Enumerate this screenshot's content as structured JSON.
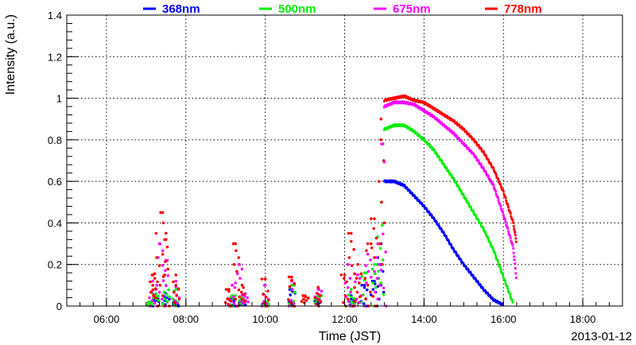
{
  "chart_data": {
    "type": "scatter",
    "xlabel": "Time (JST)",
    "ylabel": "Intensity (a.u.)",
    "date": "2013-01-12",
    "xlim": [
      "05:00",
      "19:00"
    ],
    "ylim": [
      0,
      1.4
    ],
    "x_ticks": [
      "06:00",
      "08:00",
      "10:00",
      "12:00",
      "14:00",
      "16:00",
      "18:00"
    ],
    "y_ticks": [
      "0",
      "0.2",
      "0.4",
      "0.6",
      "0.8",
      "1",
      "1.2",
      "1.4"
    ],
    "grid": true,
    "legend": "top",
    "series": [
      {
        "name": "368nm",
        "color": "#0000ff",
        "clear_sky": [
          [
            "13:00",
            0.6
          ],
          [
            "13:15",
            0.6
          ],
          [
            "13:30",
            0.58
          ],
          [
            "13:45",
            0.53
          ],
          [
            "14:00",
            0.48
          ],
          [
            "14:15",
            0.42
          ],
          [
            "14:30",
            0.35
          ],
          [
            "14:45",
            0.27
          ],
          [
            "15:00",
            0.2
          ],
          [
            "15:15",
            0.14
          ],
          [
            "15:30",
            0.08
          ],
          [
            "15:45",
            0.03
          ],
          [
            "16:00",
            0.005
          ]
        ],
        "clouded": [
          [
            "07:15",
            0.04
          ],
          [
            "07:30",
            0.06
          ],
          [
            "07:45",
            0.02
          ],
          [
            "09:10",
            0.04
          ],
          [
            "09:25",
            0.02
          ],
          [
            "10:00",
            0.01
          ],
          [
            "10:40",
            0.08
          ],
          [
            "11:20",
            0.03
          ],
          [
            "12:10",
            0.05
          ],
          [
            "12:30",
            0.1
          ],
          [
            "12:45",
            0.12
          ],
          [
            "12:55",
            0.3
          ]
        ]
      },
      {
        "name": "500nm",
        "color": "#00ee00",
        "clear_sky": [
          [
            "13:00",
            0.85
          ],
          [
            "13:15",
            0.87
          ],
          [
            "13:30",
            0.87
          ],
          [
            "13:45",
            0.84
          ],
          [
            "14:00",
            0.8
          ],
          [
            "14:15",
            0.75
          ],
          [
            "14:30",
            0.68
          ],
          [
            "14:45",
            0.61
          ],
          [
            "15:00",
            0.53
          ],
          [
            "15:15",
            0.45
          ],
          [
            "15:30",
            0.37
          ],
          [
            "15:45",
            0.27
          ],
          [
            "16:00",
            0.14
          ],
          [
            "16:15",
            0.01
          ]
        ],
        "clouded": [
          [
            "07:05",
            0.02
          ],
          [
            "07:15",
            0.06
          ],
          [
            "07:30",
            0.1
          ],
          [
            "07:45",
            0.08
          ],
          [
            "09:10",
            0.05
          ],
          [
            "09:25",
            0.04
          ],
          [
            "10:00",
            0.02
          ],
          [
            "10:40",
            0.1
          ],
          [
            "11:20",
            0.05
          ],
          [
            "12:10",
            0.08
          ],
          [
            "12:30",
            0.16
          ],
          [
            "12:45",
            0.2
          ],
          [
            "12:55",
            0.5
          ]
        ]
      },
      {
        "name": "675nm",
        "color": "#ff00ff",
        "clear_sky": [
          [
            "13:00",
            0.96
          ],
          [
            "13:15",
            0.98
          ],
          [
            "13:30",
            0.98
          ],
          [
            "13:45",
            0.97
          ],
          [
            "14:00",
            0.94
          ],
          [
            "14:15",
            0.91
          ],
          [
            "14:30",
            0.87
          ],
          [
            "14:45",
            0.83
          ],
          [
            "15:00",
            0.78
          ],
          [
            "15:15",
            0.73
          ],
          [
            "15:30",
            0.66
          ],
          [
            "15:45",
            0.58
          ],
          [
            "16:00",
            0.44
          ],
          [
            "16:15",
            0.28
          ],
          [
            "16:20",
            0.12
          ]
        ],
        "clouded": [
          [
            "07:10",
            0.12
          ],
          [
            "07:20",
            0.3
          ],
          [
            "07:30",
            0.22
          ],
          [
            "07:45",
            0.12
          ],
          [
            "09:10",
            0.1
          ],
          [
            "09:20",
            0.2
          ],
          [
            "09:30",
            0.06
          ],
          [
            "10:00",
            0.1
          ],
          [
            "10:40",
            0.12
          ],
          [
            "11:20",
            0.08
          ],
          [
            "12:05",
            0.2
          ],
          [
            "12:20",
            0.15
          ],
          [
            "12:35",
            0.25
          ],
          [
            "12:50",
            0.3
          ],
          [
            "12:58",
            0.78
          ]
        ]
      },
      {
        "name": "778nm",
        "color": "#ff0000",
        "clear_sky": [
          [
            "13:00",
            0.99
          ],
          [
            "13:15",
            1.0
          ],
          [
            "13:30",
            1.01
          ],
          [
            "13:45",
            0.99
          ],
          [
            "14:00",
            0.98
          ],
          [
            "14:15",
            0.95
          ],
          [
            "14:30",
            0.92
          ],
          [
            "14:45",
            0.89
          ],
          [
            "15:00",
            0.85
          ],
          [
            "15:15",
            0.8
          ],
          [
            "15:30",
            0.74
          ],
          [
            "15:45",
            0.66
          ],
          [
            "16:00",
            0.55
          ],
          [
            "16:15",
            0.4
          ],
          [
            "16:20",
            0.3
          ]
        ],
        "clouded": [
          [
            "07:10",
            0.15
          ],
          [
            "07:15",
            0.35
          ],
          [
            "07:25",
            0.45
          ],
          [
            "07:30",
            0.32
          ],
          [
            "07:45",
            0.15
          ],
          [
            "09:05",
            0.08
          ],
          [
            "09:15",
            0.3
          ],
          [
            "09:25",
            0.1
          ],
          [
            "10:00",
            0.13
          ],
          [
            "10:40",
            0.14
          ],
          [
            "11:00",
            0.05
          ],
          [
            "11:20",
            0.09
          ],
          [
            "12:00",
            0.15
          ],
          [
            "12:10",
            0.35
          ],
          [
            "12:20",
            0.2
          ],
          [
            "12:35",
            0.3
          ],
          [
            "12:45",
            0.42
          ],
          [
            "12:55",
            0.9
          ]
        ]
      }
    ]
  }
}
